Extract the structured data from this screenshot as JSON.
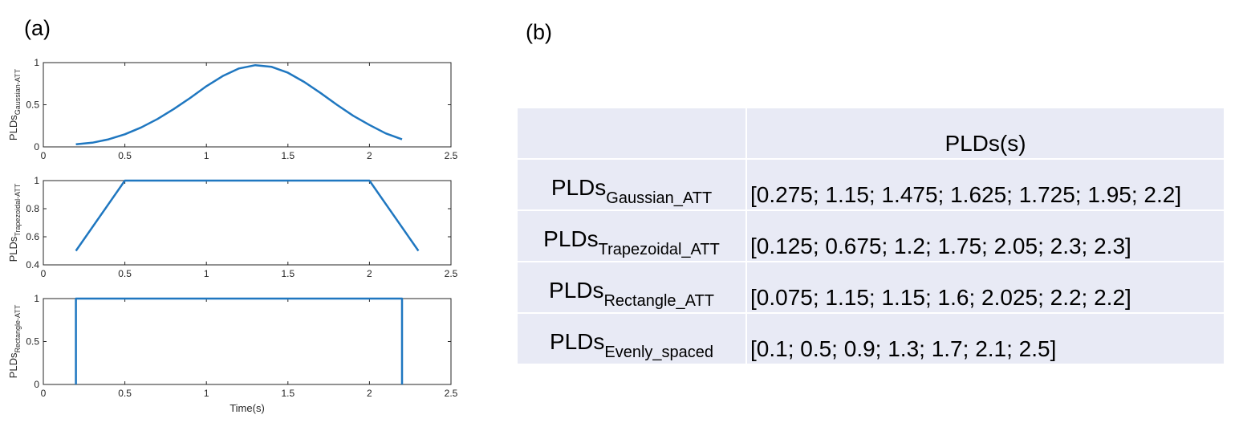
{
  "panel_labels": {
    "a": "(a)",
    "b": "(b)"
  },
  "chart_data": [
    {
      "type": "line",
      "ylabel_main": "PLDs",
      "ylabel_sub": "Gaussian-ATT",
      "xlim": [
        0,
        2.5
      ],
      "ylim": [
        0,
        1
      ],
      "xticks": [
        "0",
        "0.5",
        "1",
        "1.5",
        "2",
        "2.5"
      ],
      "yticks": [
        "0",
        "0.5",
        "1"
      ],
      "series": [
        {
          "color": "#1f77c0",
          "x": [
            0.2,
            0.3,
            0.4,
            0.5,
            0.6,
            0.7,
            0.8,
            0.9,
            1.0,
            1.1,
            1.2,
            1.3,
            1.4,
            1.5,
            1.6,
            1.7,
            1.8,
            1.9,
            2.0,
            2.1,
            2.2
          ],
          "y": [
            0.03,
            0.05,
            0.09,
            0.15,
            0.23,
            0.33,
            0.45,
            0.58,
            0.72,
            0.84,
            0.93,
            0.97,
            0.95,
            0.88,
            0.77,
            0.64,
            0.5,
            0.37,
            0.26,
            0.16,
            0.09
          ]
        }
      ]
    },
    {
      "type": "line",
      "ylabel_main": "PLDs",
      "ylabel_sub": "Trapezoidal-ATT",
      "xlim": [
        0,
        2.5
      ],
      "ylim": [
        0.4,
        1
      ],
      "xticks": [
        "0",
        "0.5",
        "1",
        "1.5",
        "2",
        "2.5"
      ],
      "yticks": [
        "0.4",
        "0.6",
        "0.8",
        "1"
      ],
      "series": [
        {
          "color": "#1f77c0",
          "x": [
            0.2,
            0.5,
            2.0,
            2.3
          ],
          "y": [
            0.5,
            1.0,
            1.0,
            0.5
          ]
        }
      ]
    },
    {
      "type": "line",
      "ylabel_main": "PLDs",
      "ylabel_sub": "Rectangle-ATT",
      "xlabel": "Time(s)",
      "xlim": [
        0,
        2.5
      ],
      "ylim": [
        0,
        1
      ],
      "xticks": [
        "0",
        "0.5",
        "1",
        "1.5",
        "2",
        "2.5"
      ],
      "yticks": [
        "0",
        "0.5",
        "1"
      ],
      "series": [
        {
          "color": "#1f77c0",
          "x": [
            0.2,
            0.2,
            2.2,
            2.2
          ],
          "y": [
            0,
            1,
            1,
            0
          ]
        }
      ]
    },
    {
      "type": "table",
      "header": "PLDs(s)",
      "rows": [
        {
          "name_main": "PLDs",
          "name_sub": "Gaussian_ATT",
          "value": "[0.275; 1.15; 1.475; 1.625; 1.725; 1.95; 2.2]"
        },
        {
          "name_main": "PLDs",
          "name_sub": "Trapezoidal_ATT",
          "value": "[0.125; 0.675; 1.2; 1.75; 2.05; 2.3; 2.3]"
        },
        {
          "name_main": "PLDs",
          "name_sub": "Rectangle_ATT",
          "value": "[0.075; 1.15; 1.15; 1.6; 2.025; 2.2; 2.2]"
        },
        {
          "name_main": "PLDs",
          "name_sub": "Evenly_spaced",
          "value": "[0.1; 0.5; 0.9; 1.3; 1.7; 2.1; 2.5]"
        }
      ]
    }
  ]
}
